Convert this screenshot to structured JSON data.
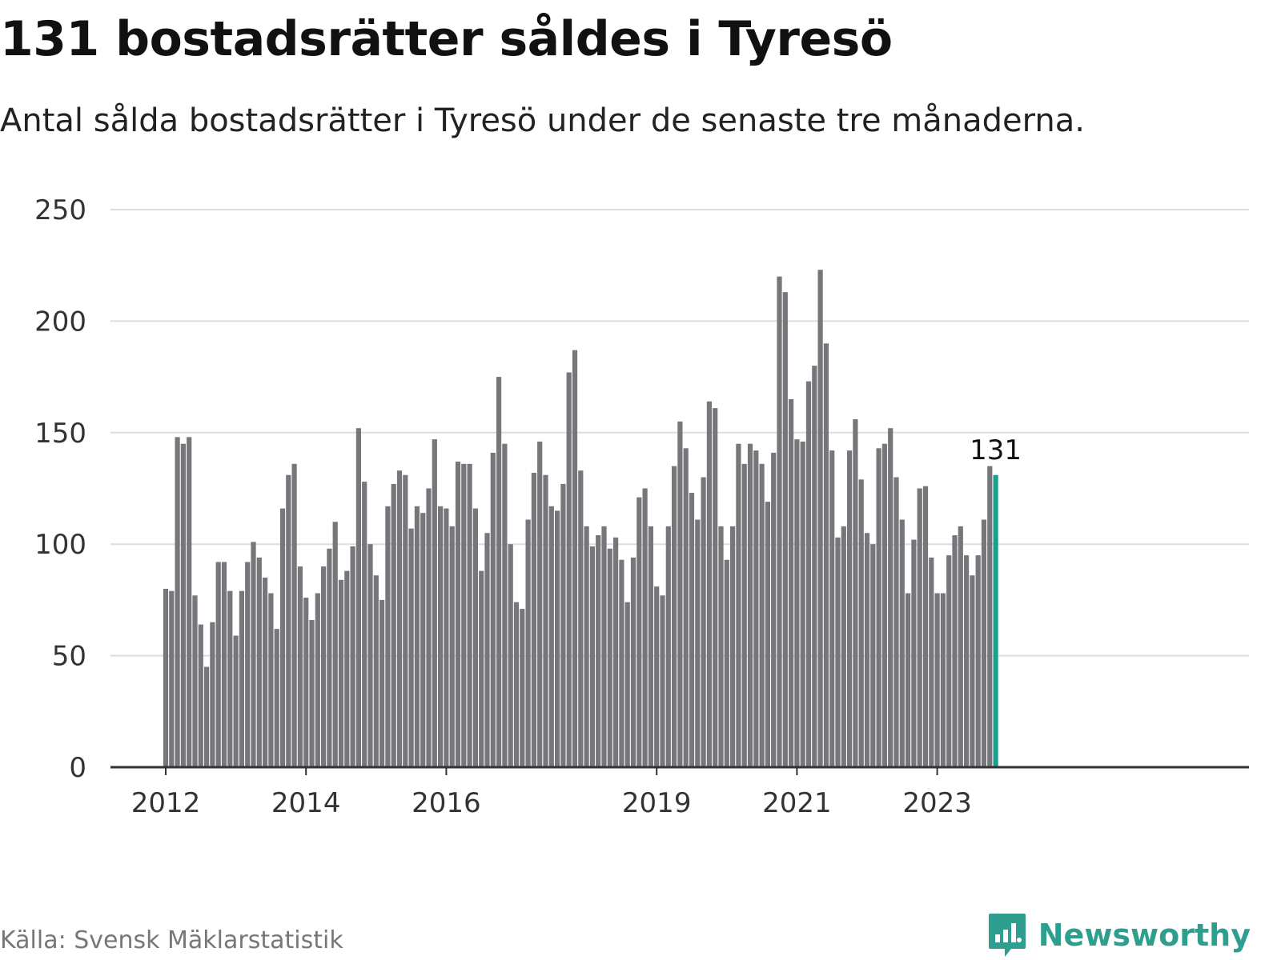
{
  "header": {
    "title": "131 bostadsrätter såldes i Tyresö",
    "subtitle": "Antal sålda bostadsrätter i Tyresö under de senaste tre månaderna."
  },
  "footer": {
    "source": "Källa: Svensk Mäklarstatistik",
    "brand": "Newsworthy",
    "brand_icon": "bar-chart-icon"
  },
  "colors": {
    "bar": "#76767b",
    "highlight": "#1a9e8f",
    "grid": "#dddddd",
    "axis": "#333333",
    "brand": "#2e9e8f"
  },
  "chart_data": {
    "type": "bar",
    "title": "131 bostadsrätter såldes i Tyresö",
    "subtitle": "Antal sålda bostadsrätter i Tyresö under de senaste tre månaderna.",
    "xlabel": "",
    "ylabel": "",
    "ylim": [
      0,
      250
    ],
    "yticks": [
      0,
      50,
      100,
      150,
      200,
      250
    ],
    "grid": true,
    "start": "2012-01",
    "xtick_labels": [
      {
        "label": "2012",
        "index": 0
      },
      {
        "label": "2014",
        "index": 24
      },
      {
        "label": "2016",
        "index": 48
      },
      {
        "label": "2019",
        "index": 84
      },
      {
        "label": "2021",
        "index": 108
      },
      {
        "label": "2023",
        "index": 132
      }
    ],
    "values": [
      80,
      79,
      148,
      145,
      148,
      77,
      64,
      45,
      65,
      92,
      92,
      79,
      59,
      79,
      92,
      101,
      94,
      85,
      78,
      62,
      116,
      131,
      136,
      90,
      76,
      66,
      78,
      90,
      98,
      110,
      84,
      88,
      99,
      152,
      128,
      100,
      86,
      75,
      117,
      127,
      133,
      131,
      107,
      117,
      114,
      125,
      147,
      117,
      116,
      108,
      137,
      136,
      136,
      116,
      88,
      105,
      141,
      175,
      145,
      100,
      74,
      71,
      111,
      132,
      146,
      131,
      117,
      115,
      127,
      177,
      187,
      133,
      108,
      99,
      104,
      108,
      98,
      103,
      93,
      74,
      94,
      121,
      125,
      108,
      81,
      77,
      108,
      135,
      155,
      143,
      123,
      111,
      130,
      164,
      161,
      108,
      93,
      108,
      145,
      136,
      145,
      142,
      136,
      119,
      141,
      220,
      213,
      165,
      147,
      146,
      173,
      180,
      223,
      190,
      142,
      103,
      108,
      142,
      156,
      129,
      105,
      100,
      143,
      145,
      152,
      130,
      111,
      78,
      102,
      125,
      126,
      94,
      78,
      78,
      95,
      104,
      108,
      95,
      86,
      95,
      111,
      135,
      131
    ],
    "highlight_index": 142,
    "highlight_label": "131"
  }
}
